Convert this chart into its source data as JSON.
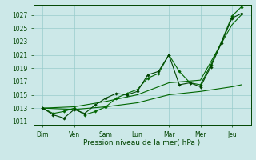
{
  "background_color": "#cce8e8",
  "grid_color": "#99cccc",
  "line_color_dark": "#004400",
  "line_color_mid": "#006600",
  "xlabel": "Pression niveau de la mer( hPa )",
  "ylim": [
    1010.5,
    1028.5
  ],
  "yticks": [
    1011,
    1013,
    1015,
    1017,
    1019,
    1021,
    1023,
    1025,
    1027
  ],
  "x_labels": [
    "Dim",
    "Ven",
    "Sam",
    "Lun",
    "Mar",
    "Mer",
    "Jeu"
  ],
  "x_positions": [
    0,
    1,
    2,
    3,
    4,
    5,
    6
  ],
  "xlim": [
    -0.3,
    6.6
  ],
  "series1": {
    "x": [
      0.0,
      0.33,
      0.67,
      1.0,
      1.33,
      1.67,
      2.0,
      2.33,
      2.67,
      3.0,
      3.33,
      3.67,
      4.0,
      4.33,
      4.67,
      5.0,
      5.33,
      5.67,
      6.0,
      6.3
    ],
    "y": [
      1013.0,
      1012.2,
      1012.5,
      1013.0,
      1012.0,
      1012.5,
      1013.2,
      1014.5,
      1015.2,
      1015.8,
      1017.5,
      1018.2,
      1021.0,
      1018.5,
      1016.8,
      1016.5,
      1019.5,
      1023.0,
      1026.8,
      1028.2
    ]
  },
  "series2": {
    "x": [
      0.0,
      0.33,
      0.67,
      1.0,
      1.33,
      1.67,
      2.0,
      2.33,
      2.67,
      3.0,
      3.33,
      3.67,
      4.0,
      4.33,
      4.67,
      5.0,
      5.33,
      5.67,
      6.0,
      6.3
    ],
    "y": [
      1013.0,
      1012.0,
      1011.5,
      1012.8,
      1012.2,
      1013.5,
      1014.5,
      1015.2,
      1015.0,
      1015.5,
      1018.0,
      1018.5,
      1021.0,
      1016.5,
      1016.8,
      1016.2,
      1019.2,
      1022.8,
      1026.5,
      1027.2
    ]
  },
  "series3": {
    "x": [
      0.0,
      1.0,
      2.0,
      3.0,
      4.0,
      5.0,
      6.0,
      6.3
    ],
    "y": [
      1013.0,
      1012.8,
      1013.2,
      1013.8,
      1015.0,
      1015.5,
      1016.2,
      1016.5
    ]
  },
  "series4": {
    "x": [
      0.0,
      1.0,
      2.0,
      3.0,
      4.0,
      5.0,
      6.0,
      6.3
    ],
    "y": [
      1013.0,
      1013.2,
      1014.0,
      1015.0,
      1016.8,
      1017.2,
      1025.5,
      1027.0
    ]
  }
}
